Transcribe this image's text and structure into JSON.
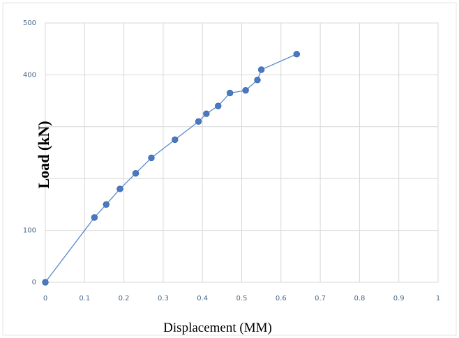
{
  "chart_data": {
    "type": "scatter",
    "mode": "line-with-markers",
    "xlabel": "Displacement (MM)",
    "ylabel": "Load (kN)",
    "xlim": [
      0,
      1
    ],
    "ylim": [
      0,
      500
    ],
    "x_ticks": [
      "0",
      "0.1",
      "0.2",
      "0.3",
      "0.4",
      "0.5",
      "0.6",
      "0.7",
      "0.8",
      "0.9",
      "1"
    ],
    "y_ticks": [
      "0",
      "100",
      "",
      "",
      "400",
      "500"
    ],
    "grid": true,
    "colors": {
      "line": "#5b8ac9",
      "marker": "#4a79bf",
      "grid": "#d9d9d9",
      "tick": "#4a6a8a"
    },
    "series": [
      {
        "x": [
          0,
          0.125,
          0.155,
          0.19,
          0.23,
          0.27,
          0.33,
          0.39,
          0.41,
          0.44,
          0.47,
          0.51,
          0.54,
          0.55,
          0.64
        ],
        "y": [
          0,
          125,
          150,
          180,
          210,
          240,
          275,
          310,
          325,
          340,
          365,
          370,
          390,
          410,
          440
        ]
      }
    ]
  }
}
